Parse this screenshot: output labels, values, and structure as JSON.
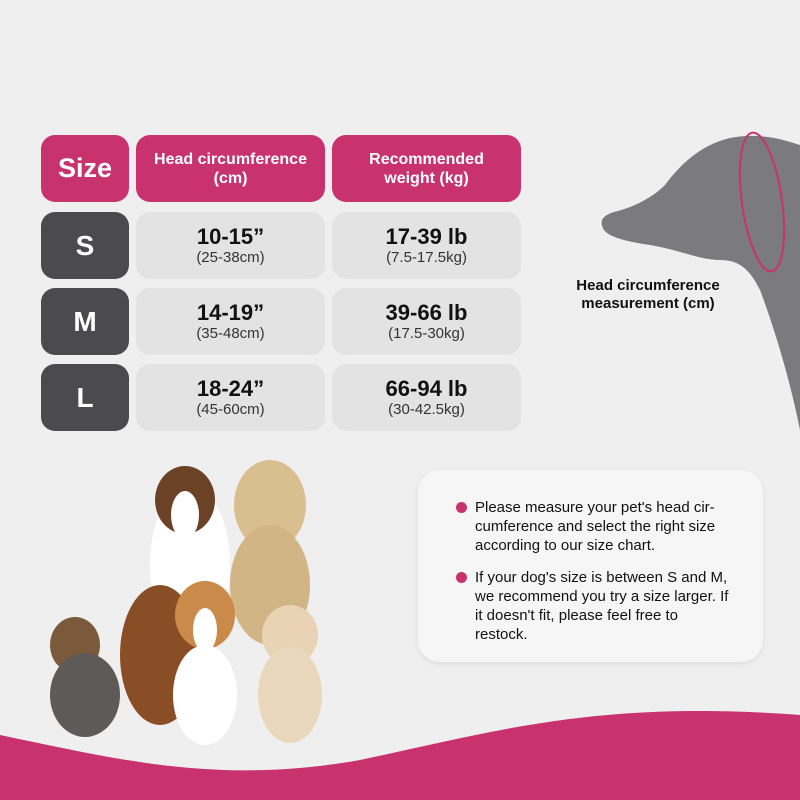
{
  "colors": {
    "accent": "#c8336f",
    "size_cell": "#4b4a4c",
    "value_cell": "#e3e3e3",
    "background": "#efefef"
  },
  "table": {
    "headers": [
      "Size",
      "Head circumference\n(cm)",
      "Recommended\nweight (kg)"
    ],
    "rows": [
      {
        "size": "S",
        "head": "10-15”",
        "head_cm": "(25-38cm)",
        "weight": "17-39 lb",
        "weight_kg": "(7.5-17.5kg)"
      },
      {
        "size": "M",
        "head": "14-19”",
        "head_cm": "(35-48cm)",
        "weight": "39-66 lb",
        "weight_kg": "(17.5-30kg)"
      },
      {
        "size": "L",
        "head": "18-24”",
        "head_cm": "(45-60cm)",
        "weight": "66-94 lb",
        "weight_kg": "(30-42.5kg)"
      }
    ]
  },
  "measurement_label": "Head circumference\nmeasurement (cm)",
  "notes": [
    "Please measure your pet's head cir-\ncumference and select the right size\naccording to our size chart.",
    "If your dog's size is between S and M,\nwe recommend you try a size larger. If\nit doesn't fit, please feel free to\nrestock."
  ],
  "icons": [
    "dog-head-silhouette-icon",
    "dogs-photo"
  ]
}
